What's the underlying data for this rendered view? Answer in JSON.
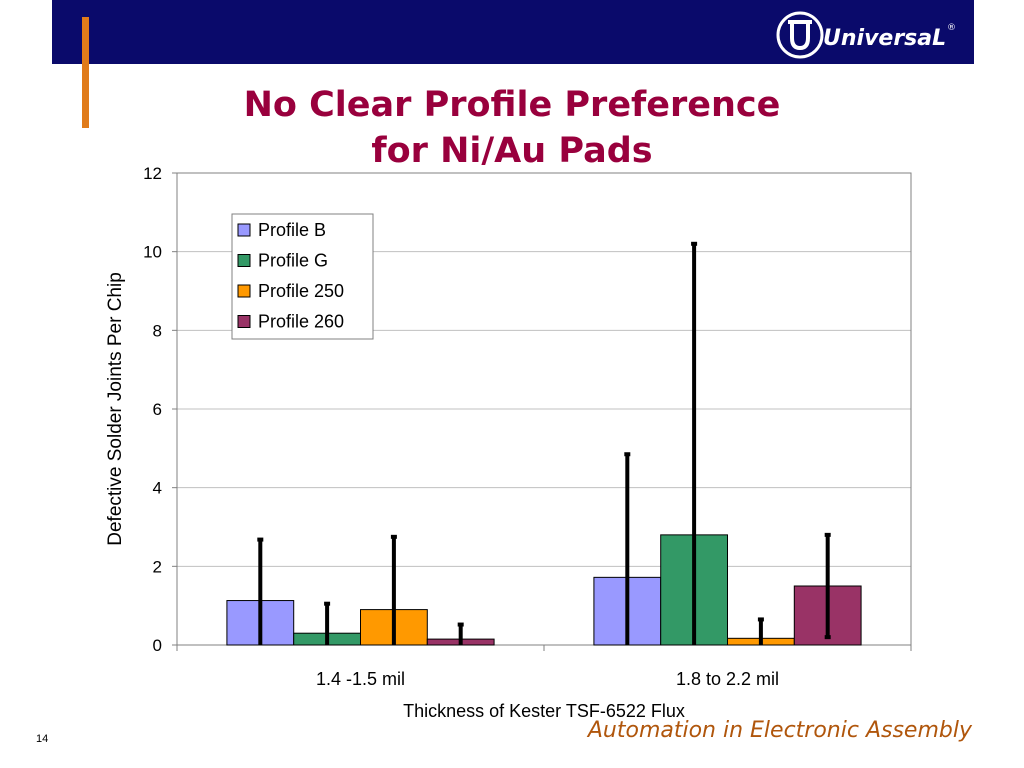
{
  "header": {
    "logo_text": "UniversaL",
    "logo_mark": "®",
    "title_line1": "No Clear Profile Preference",
    "title_line2": "for Ni/Au Pads"
  },
  "footer": {
    "slide_number": "14",
    "tagline": "Automation in Electronic Assembly"
  },
  "colors": {
    "header": "#0a0a6b",
    "accent": "#e07b1a",
    "title": "#99003d",
    "tagline": "#b0560c"
  },
  "chart_data": {
    "type": "bar",
    "title": "",
    "xlabel": "Thickness of Kester TSF-6522 Flux",
    "ylabel": "Defective Solder Joints Per Chip",
    "categories": [
      "1.4 -1.5 mil",
      "1.8 to 2.2 mil"
    ],
    "ylim": [
      0,
      12
    ],
    "yticks": [
      0,
      2,
      4,
      6,
      8,
      10,
      12
    ],
    "grid": true,
    "legend_position": "top-left",
    "series": [
      {
        "name": "Profile B",
        "color": "#9999ff",
        "values": [
          1.13,
          1.72
        ],
        "err_low": [
          0,
          0
        ],
        "err_high": [
          2.68,
          4.85
        ]
      },
      {
        "name": "Profile G",
        "color": "#339966",
        "values": [
          0.3,
          2.8
        ],
        "err_low": [
          0,
          0
        ],
        "err_high": [
          1.05,
          10.2
        ]
      },
      {
        "name": "Profile 250",
        "color": "#ff9900",
        "values": [
          0.9,
          0.17
        ],
        "err_low": [
          0,
          0
        ],
        "err_high": [
          2.75,
          0.65
        ]
      },
      {
        "name": "Profile 260",
        "color": "#993366",
        "values": [
          0.15,
          1.5
        ],
        "err_low": [
          0,
          0.2
        ],
        "err_high": [
          0.52,
          2.8
        ]
      }
    ]
  }
}
